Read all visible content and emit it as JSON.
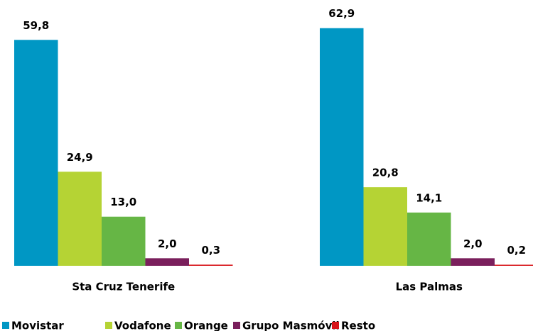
{
  "chart_data": {
    "type": "bar",
    "categories": [
      "Sta Cruz Tenerife",
      "Las Palmas"
    ],
    "series": [
      {
        "name": "Movistar",
        "color": "#0097c4",
        "values": [
          59.8,
          62.9
        ],
        "value_labels": [
          "59,8",
          "62,9"
        ]
      },
      {
        "name": "Vodafone",
        "color": "#b5d334",
        "values": [
          24.9,
          20.8
        ],
        "value_labels": [
          "24,9",
          "20,8"
        ]
      },
      {
        "name": "Orange",
        "color": "#66b645",
        "values": [
          13.0,
          14.1
        ],
        "value_labels": [
          "13,0",
          "14,1"
        ]
      },
      {
        "name": "Grupo Masmóvil",
        "color": "#7a1f5c",
        "values": [
          2.0,
          2.0
        ],
        "value_labels": [
          "2,0",
          "2,0"
        ]
      },
      {
        "name": "Resto",
        "color": "#d7141a",
        "values": [
          0.3,
          0.2
        ],
        "value_labels": [
          "0,3",
          "0,2"
        ]
      }
    ]
  }
}
